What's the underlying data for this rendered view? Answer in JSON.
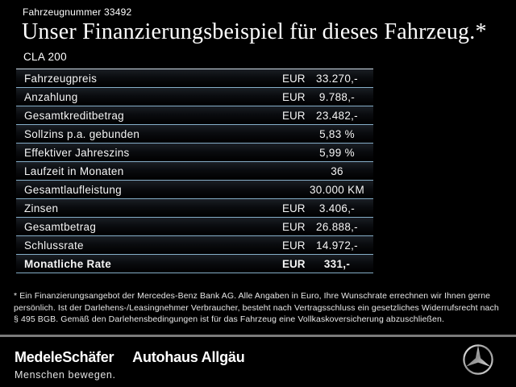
{
  "header": {
    "vehicle_number": "Fahrzeugnummer 33492",
    "title": "Unser Finanzierungsbeispiel für dieses Fahrzeug.*",
    "model": "CLA 200"
  },
  "table": {
    "rows": [
      {
        "label": "Fahrzeugpreis",
        "currency": "EUR",
        "value": "33.270,-",
        "bold": false
      },
      {
        "label": "Anzahlung",
        "currency": "EUR",
        "value": "9.788,-",
        "bold": false
      },
      {
        "label": "Gesamtkreditbetrag",
        "currency": "EUR",
        "value": "23.482,-",
        "bold": false
      },
      {
        "label": "Sollzins p.a. gebunden",
        "currency": "",
        "value": "5,83 %",
        "bold": false
      },
      {
        "label": "Effektiver Jahreszins",
        "currency": "",
        "value": "5,99 %",
        "bold": false
      },
      {
        "label": "Laufzeit in Monaten",
        "currency": "",
        "value": "36",
        "bold": false
      },
      {
        "label": "Gesamtlaufleistung",
        "currency": "",
        "value": "30.000 KM",
        "bold": false
      },
      {
        "label": "Zinsen",
        "currency": "EUR",
        "value": "3.406,-",
        "bold": false
      },
      {
        "label": "Gesamtbetrag",
        "currency": "EUR",
        "value": "26.888,-",
        "bold": false
      },
      {
        "label": "Schlussrate",
        "currency": "EUR",
        "value": "14.972,-",
        "bold": false
      },
      {
        "label": "Monatliche Rate",
        "currency": "EUR",
        "value": "331,-",
        "bold": true
      }
    ]
  },
  "footnote": {
    "lines": [
      "* Ein Finanzierungsangebot der Mercedes-Benz Bank AG. Alle Angaben in Euro, Ihre Wunschrate errechnen wir Ihnen gerne",
      "persönlich. Ist der Darlehens-/Leasingnehmer Verbraucher, besteht nach Vertragsschluss ein gesetzliches Widerrufsrecht nach",
      "§ 495 BGB. Gemäß den Darlehensbedingungen ist für das Fahrzeug eine Vollkaskoversicherung abzuschließen."
    ]
  },
  "footer": {
    "dealer_primary": "MedeleSchäfer",
    "dealer_secondary": "Autohaus Allgäu",
    "slogan": "Menschen bewegen.",
    "brand_icon": "mercedes-star-icon"
  },
  "colors": {
    "background": "#000000",
    "separator": "#86afc9",
    "separator_top": "#cfdde8",
    "footer_rule": "#7a7a7a",
    "text": "#f2f2f2"
  }
}
